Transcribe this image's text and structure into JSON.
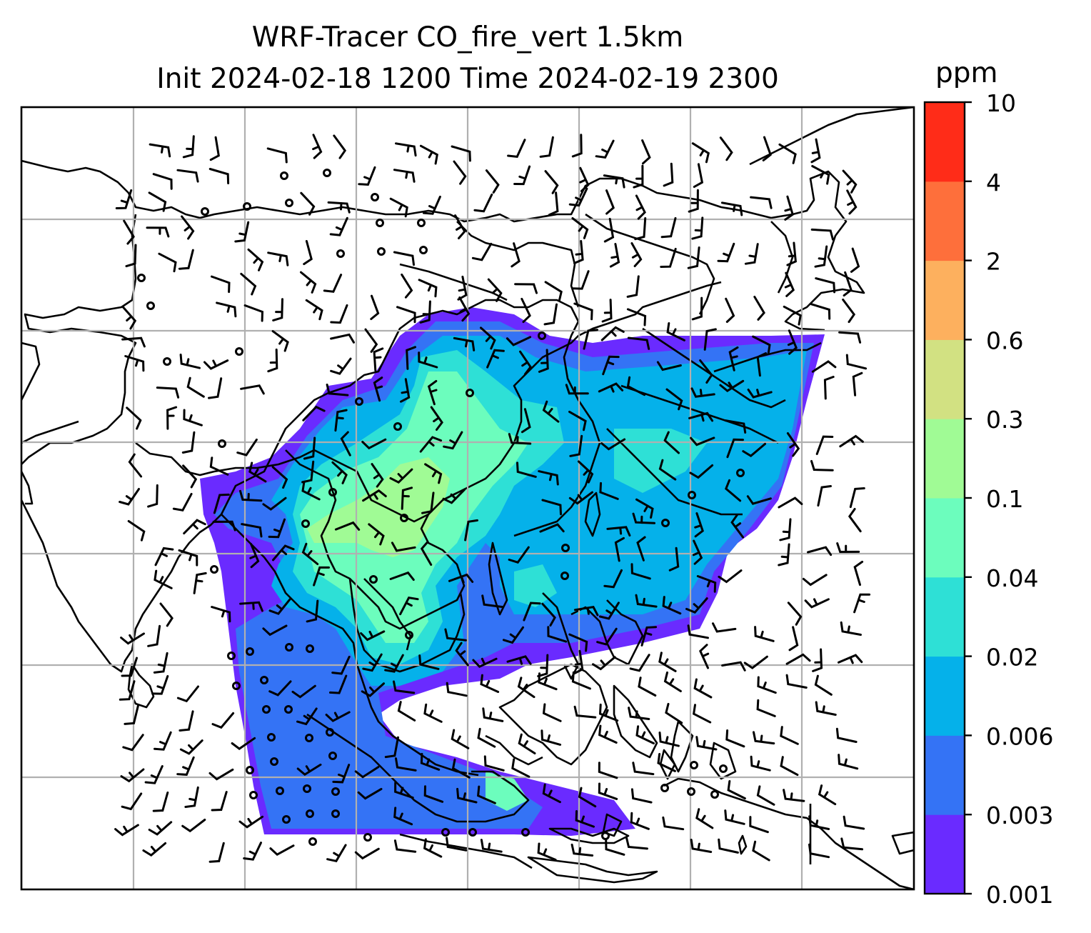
{
  "map": {
    "title_line1": "WRF-Tracer CO_fire_vert 1.5km",
    "title_line2": "Init 2024-02-18 1200 Time 2024-02-19 2300"
  },
  "colorbar": {
    "unit": "ppm",
    "levels": [
      "0.001",
      "0.003",
      "0.006",
      "0.02",
      "0.04",
      "0.1",
      "0.3",
      "0.6",
      "2",
      "4",
      "10"
    ],
    "colors": [
      "#6a2bff",
      "#3473f5",
      "#05b1ea",
      "#2ee0d6",
      "#6cfdbd",
      "#a0fb95",
      "#d2e182",
      "#fdb05e",
      "#fe6f3b",
      "#ff2c18"
    ]
  },
  "style": {
    "coast_color": "#000000",
    "grid_color": "#b0b0b0",
    "barb_color": "#000000"
  }
}
